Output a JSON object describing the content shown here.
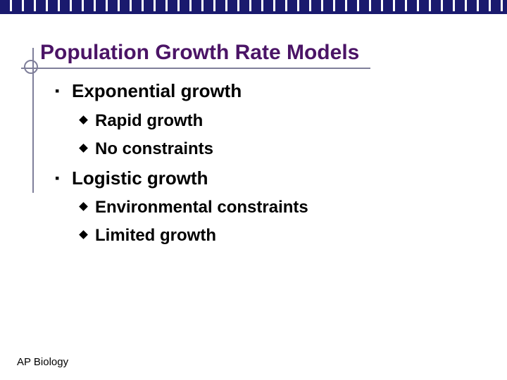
{
  "slide": {
    "title": "Population Growth Rate Models",
    "bullets": [
      {
        "text": "Exponential growth",
        "sub": [
          "Rapid growth",
          "No constraints"
        ]
      },
      {
        "text": "Logistic growth",
        "sub": [
          "Environmental constraints",
          "Limited growth"
        ]
      }
    ],
    "footer": "AP Biology"
  },
  "icons": {
    "level1_bullet": "square-bullet-icon",
    "level2_bullet": "diamond-bullet-icon"
  },
  "colors": {
    "title": "#4b1466",
    "top_bar": "#1a1a6e",
    "decor_lines": "#7f7f9a"
  }
}
